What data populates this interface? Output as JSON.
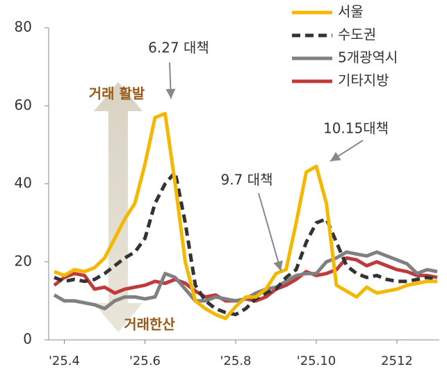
{
  "chart_data": {
    "type": "line",
    "categories": [
      null,
      "'25.4",
      null,
      null,
      null,
      null,
      null,
      null,
      null,
      "'25.6",
      null,
      null,
      null,
      null,
      null,
      null,
      null,
      null,
      "'25.8",
      null,
      null,
      null,
      null,
      null,
      null,
      null,
      "'25.10",
      null,
      null,
      null,
      null,
      null,
      null,
      null,
      "2512",
      null,
      null,
      null,
      null
    ],
    "series": [
      {
        "name": "서울",
        "color": "#f5b800",
        "values": [
          17.5,
          16.5,
          18,
          17.5,
          18.5,
          21,
          26,
          31,
          35,
          45,
          57,
          58,
          40,
          20,
          10,
          8,
          6.5,
          5.5,
          8.5,
          11,
          11,
          13,
          17,
          18,
          30,
          43,
          44.5,
          35,
          14,
          12.5,
          11,
          13.5,
          12,
          12.5,
          13,
          14,
          14.5,
          15,
          15
        ]
      },
      {
        "name": "수도권",
        "color": "#333333",
        "line_style": "dashed",
        "values": [
          16,
          15,
          15.5,
          15,
          15.5,
          17,
          19,
          21,
          22.5,
          26,
          35,
          40,
          43,
          30,
          14,
          10,
          8,
          7,
          6.5,
          8,
          10.5,
          12,
          13,
          16,
          18,
          25,
          30,
          31,
          25,
          19,
          17,
          16,
          16.5,
          15.5,
          15,
          15,
          15.5,
          16,
          15.5
        ]
      },
      {
        "name": "5개광역시",
        "color": "#808080",
        "values": [
          11.5,
          10,
          10,
          9.5,
          9,
          8,
          10,
          11,
          11,
          10.5,
          11,
          17,
          16,
          13,
          10,
          10,
          11,
          10.5,
          10,
          10.5,
          12,
          13,
          13.5,
          15,
          16.5,
          17,
          17,
          20,
          21,
          22.5,
          22,
          21.5,
          22.5,
          21.5,
          20.5,
          19.5,
          17,
          18,
          17.5
        ]
      },
      {
        "name": "기타지방",
        "color": "#c0393b",
        "values": [
          14,
          16,
          17,
          16.5,
          13,
          13.5,
          12,
          13,
          13.5,
          14,
          15,
          14.5,
          15.5,
          14.5,
          12.5,
          11,
          11.5,
          10,
          10,
          10.5,
          10,
          11,
          13,
          14,
          15.5,
          17.5,
          16.5,
          17,
          18,
          21,
          20.5,
          19,
          20,
          19,
          18,
          17.5,
          16.5,
          16.5,
          16
        ]
      }
    ],
    "ylim": [
      0,
      80
    ],
    "yticks": [
      0,
      20,
      40,
      60,
      80
    ],
    "annotations": [
      "6.27 대책",
      "10.15대책",
      "9.7 대책",
      "거래 활발",
      "거래한산"
    ]
  }
}
